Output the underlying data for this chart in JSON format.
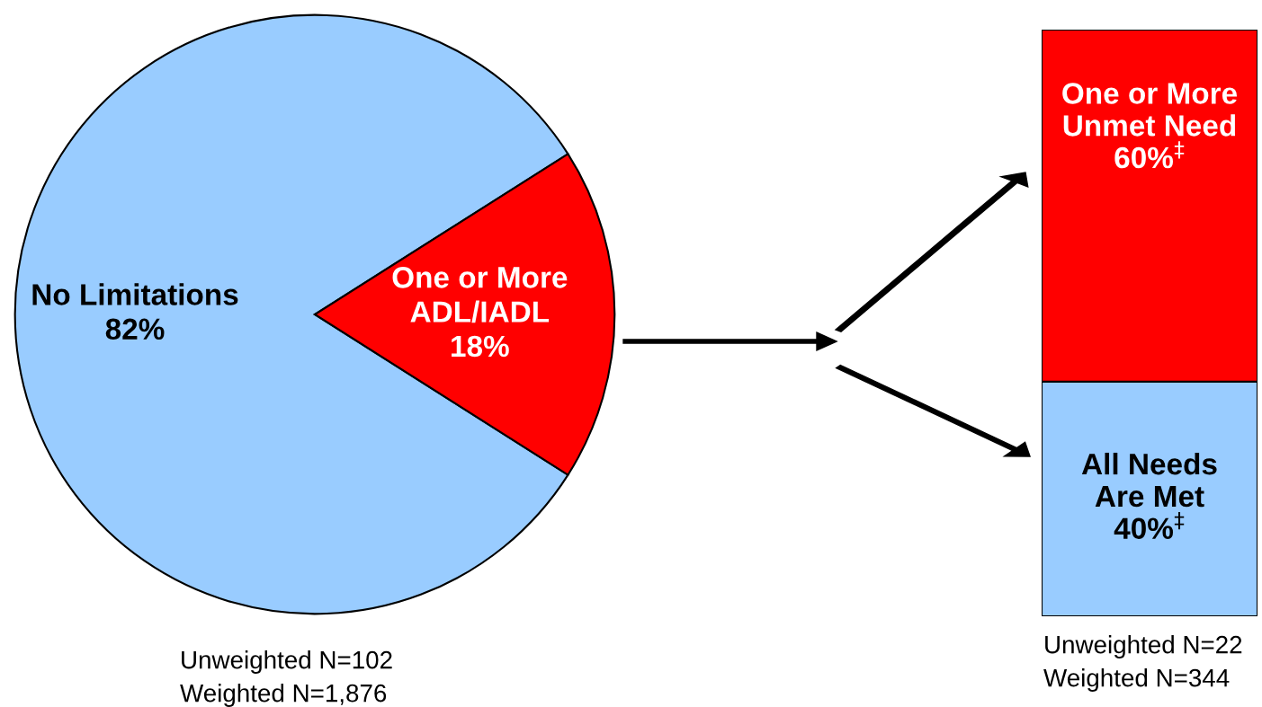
{
  "chart_data": [
    {
      "type": "pie",
      "categories": [
        "No Limitations",
        "One or More\nADL/IADL"
      ],
      "values": [
        82,
        18
      ],
      "colors": [
        "#99ccff",
        "#ff0000"
      ],
      "value_labels": [
        "82%",
        "18%"
      ],
      "annotations": [
        "Unweighted N=102",
        "Weighted N=1,876"
      ]
    },
    {
      "type": "bar",
      "stacked": true,
      "tick_labels": false,
      "categories": [
        null
      ],
      "series": [
        {
          "name": "All Needs\nAre Met",
          "color": "#99ccff",
          "values": [
            40
          ],
          "value_labels": [
            "40%$^{‡}$"
          ]
        },
        {
          "name": "One or More\nUnmet Need",
          "color": "#ff0000",
          "values": [
            60
          ],
          "value_labels": [
            "60%$^{‡}$"
          ]
        }
      ],
      "annotations": [
        "Unweighted N=22",
        "Weighted N=344"
      ]
    }
  ]
}
